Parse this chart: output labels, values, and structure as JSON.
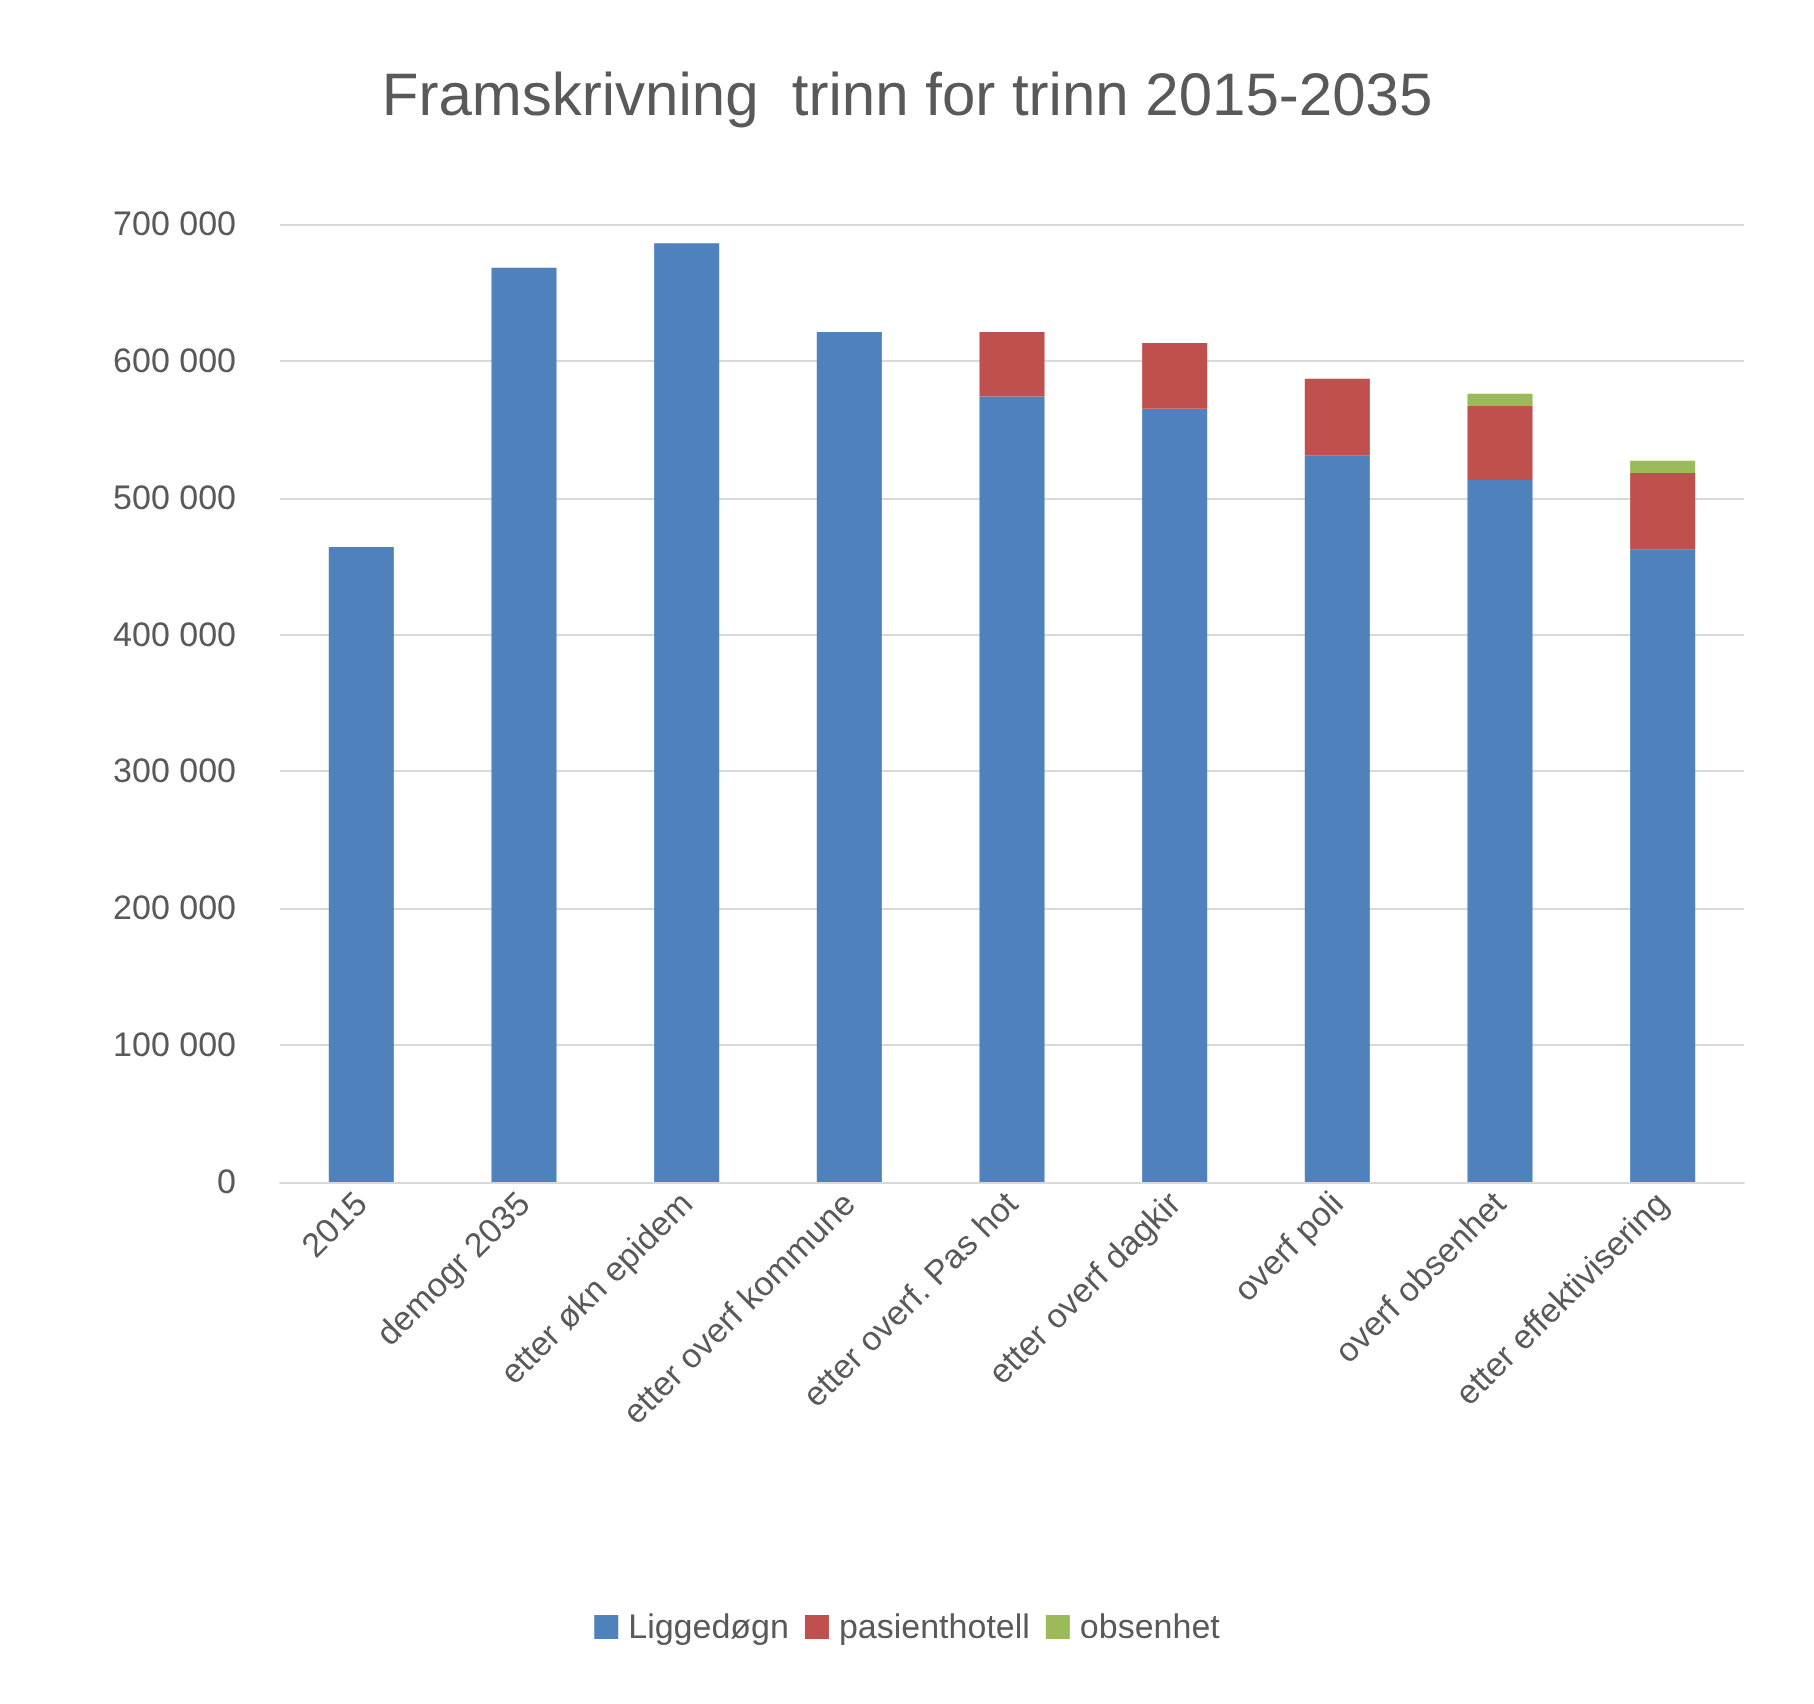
{
  "chart_data": {
    "type": "bar",
    "title": "Framskrivning  trinn for trinn 2015-2035",
    "stacked": true,
    "categories": [
      "2015",
      "demogr 2035",
      "etter økn epidem",
      "etter overf kommune",
      "etter overf. Pas hot",
      "etter overf dagkir",
      "overf poli",
      "overf obsenhet",
      "etter effektivisering"
    ],
    "series": [
      {
        "name": "Liggedøgn",
        "color": "#4f81bd",
        "values": [
          464000,
          668000,
          686000,
          621000,
          574000,
          565000,
          531000,
          513000,
          462000
        ]
      },
      {
        "name": "pasienthotell",
        "color": "#c0504d",
        "values": [
          null,
          null,
          null,
          null,
          47000,
          48000,
          56000,
          54000,
          56000
        ]
      },
      {
        "name": "obsenhet",
        "color": "#9bbb59",
        "values": [
          null,
          null,
          null,
          null,
          null,
          null,
          null,
          9000,
          9000
        ]
      }
    ],
    "ylim": [
      0,
      700000
    ],
    "yticks": [
      0,
      100000,
      200000,
      300000,
      400000,
      500000,
      600000,
      700000
    ],
    "grid": "y",
    "legend": "bottom"
  }
}
